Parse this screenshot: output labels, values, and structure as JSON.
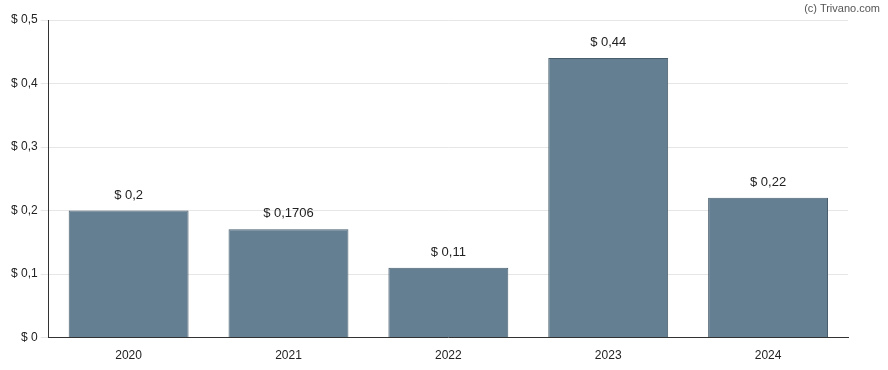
{
  "chart_data": {
    "type": "bar",
    "annotations": [
      "(c) Trivano.com"
    ],
    "categories": [
      "2020",
      "2021",
      "2022",
      "2023",
      "2024"
    ],
    "values": [
      0.2,
      0.1706,
      0.11,
      0.44,
      0.22
    ],
    "value_labels": [
      "$ 0,2",
      "$ 0,1706",
      "$ 0,11",
      "$ 0,44",
      "$ 0,22"
    ],
    "data_labels": true,
    "color": "#657f92",
    "ylim": [
      0,
      0.5
    ],
    "yticks": [
      {
        "value": 0,
        "label": "$ 0"
      },
      {
        "value": 0.1,
        "label": "$ 0,1"
      },
      {
        "value": 0.2,
        "label": "$ 0,2"
      },
      {
        "value": 0.3,
        "label": "$ 0,3"
      },
      {
        "value": 0.4,
        "label": "$ 0,4"
      },
      {
        "value": 0.5,
        "label": "$ 0,5"
      }
    ],
    "grid": true
  }
}
